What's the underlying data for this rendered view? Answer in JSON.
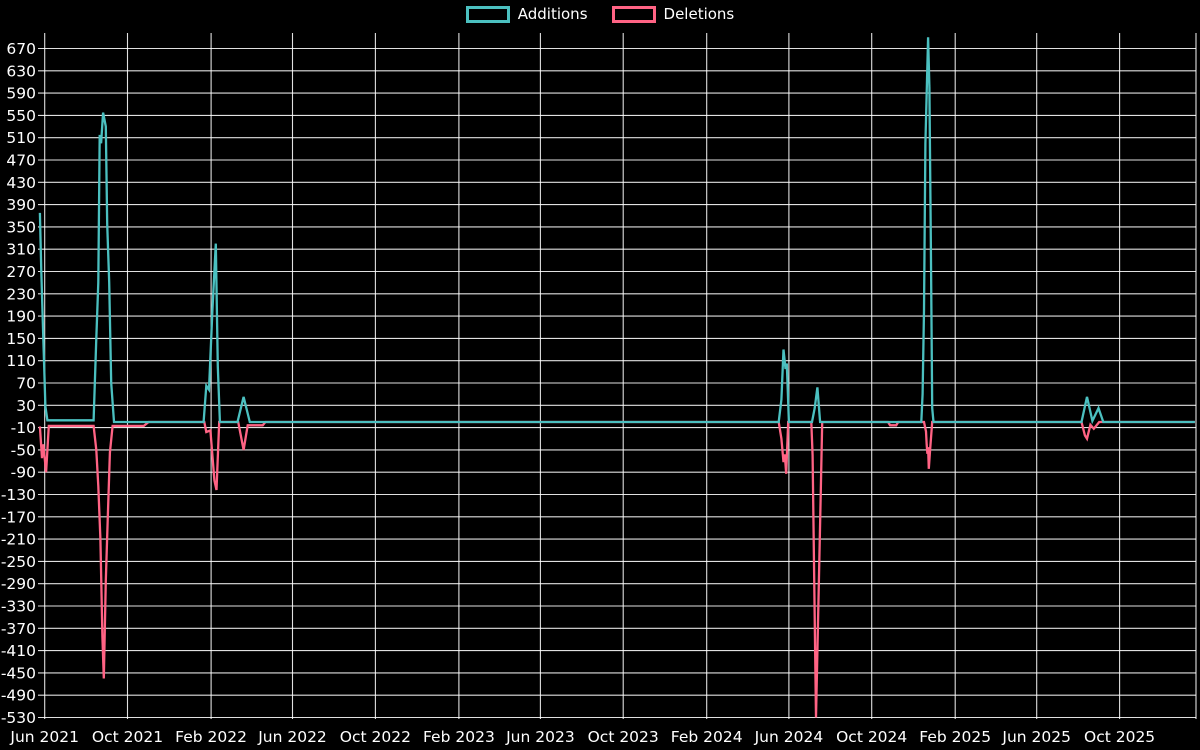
{
  "legend": {
    "items": [
      {
        "label": "Additions",
        "color": "#4bc0c0"
      },
      {
        "label": "Deletions",
        "color": "#ff6384"
      }
    ]
  },
  "chart_data": {
    "type": "line",
    "title": "",
    "xlabel": "",
    "ylabel": "",
    "legend_position": "top",
    "grid": true,
    "background": "#000000",
    "grid_color": "rgba(255,255,255,0.88)",
    "text_color": "#ffffff",
    "x_axis": {
      "range": [
        "2021-05-25",
        "2026-01-20"
      ],
      "ticks": [
        {
          "label": "Jun 2021",
          "date": "2021-06-01"
        },
        {
          "label": "Oct 2021",
          "date": "2021-10-01"
        },
        {
          "label": "Feb 2022",
          "date": "2022-02-01"
        },
        {
          "label": "Jun 2022",
          "date": "2022-06-01"
        },
        {
          "label": "Oct 2022",
          "date": "2022-10-01"
        },
        {
          "label": "Feb 2023",
          "date": "2023-02-01"
        },
        {
          "label": "Jun 2023",
          "date": "2023-06-01"
        },
        {
          "label": "Oct 2023",
          "date": "2023-10-01"
        },
        {
          "label": "Feb 2024",
          "date": "2024-02-01"
        },
        {
          "label": "Jun 2024",
          "date": "2024-06-01"
        },
        {
          "label": "Oct 2024",
          "date": "2024-10-01"
        },
        {
          "label": "Feb 2025",
          "date": "2025-02-01"
        },
        {
          "label": "Jun 2025",
          "date": "2025-06-01"
        },
        {
          "label": "Oct 2025",
          "date": "2025-10-01"
        }
      ]
    },
    "y_axis": {
      "range": [
        -533,
        698
      ],
      "ticks": [
        670,
        630,
        590,
        550,
        510,
        470,
        430,
        390,
        350,
        310,
        270,
        230,
        190,
        150,
        110,
        70,
        30,
        -10,
        -50,
        -90,
        -130,
        -170,
        -210,
        -250,
        -290,
        -330,
        -370,
        -410,
        -450,
        -490,
        -530
      ]
    },
    "series": [
      {
        "name": "Additions",
        "color": "#4bc0c0",
        "points": [
          [
            "2021-05-25",
            375
          ],
          [
            "2021-05-27",
            270
          ],
          [
            "2021-05-30",
            150
          ],
          [
            "2021-06-02",
            28
          ],
          [
            "2021-06-05",
            3
          ],
          [
            "2021-08-12",
            3
          ],
          [
            "2021-08-16",
            150
          ],
          [
            "2021-08-19",
            250
          ],
          [
            "2021-08-21",
            515
          ],
          [
            "2021-08-23",
            500
          ],
          [
            "2021-08-26",
            555
          ],
          [
            "2021-08-30",
            530
          ],
          [
            "2021-09-01",
            355
          ],
          [
            "2021-09-04",
            250
          ],
          [
            "2021-09-07",
            70
          ],
          [
            "2021-09-11",
            0
          ],
          [
            "2022-01-21",
            0
          ],
          [
            "2022-01-25",
            65
          ],
          [
            "2022-01-29",
            58
          ],
          [
            "2022-02-03",
            200
          ],
          [
            "2022-02-08",
            320
          ],
          [
            "2022-02-11",
            100
          ],
          [
            "2022-02-14",
            0
          ],
          [
            "2022-03-12",
            0
          ],
          [
            "2022-03-21",
            45
          ],
          [
            "2022-03-30",
            0
          ],
          [
            "2024-05-17",
            0
          ],
          [
            "2024-05-21",
            40
          ],
          [
            "2024-05-24",
            130
          ],
          [
            "2024-05-27",
            95
          ],
          [
            "2024-05-29",
            105
          ],
          [
            "2024-06-01",
            0
          ],
          [
            "2024-07-05",
            0
          ],
          [
            "2024-07-09",
            25
          ],
          [
            "2024-07-13",
            62
          ],
          [
            "2024-07-17",
            0
          ],
          [
            "2024-12-13",
            0
          ],
          [
            "2024-12-15",
            50
          ],
          [
            "2024-12-17",
            200
          ],
          [
            "2024-12-19",
            500
          ],
          [
            "2024-12-23",
            690
          ],
          [
            "2024-12-25",
            600
          ],
          [
            "2024-12-27",
            330
          ],
          [
            "2024-12-28",
            180
          ],
          [
            "2024-12-29",
            25
          ],
          [
            "2024-12-31",
            0
          ],
          [
            "2025-08-06",
            0
          ],
          [
            "2025-08-14",
            45
          ],
          [
            "2025-08-22",
            2
          ],
          [
            "2025-08-31",
            25
          ],
          [
            "2025-09-07",
            0
          ],
          [
            "2026-01-20",
            0
          ]
        ]
      },
      {
        "name": "Deletions",
        "color": "#ff6384",
        "points": [
          [
            "2021-05-25",
            -8
          ],
          [
            "2021-05-28",
            -65
          ],
          [
            "2021-05-30",
            -40
          ],
          [
            "2021-06-03",
            -90
          ],
          [
            "2021-06-07",
            -7
          ],
          [
            "2021-08-12",
            -7
          ],
          [
            "2021-08-16",
            -50
          ],
          [
            "2021-08-19",
            -115
          ],
          [
            "2021-08-22",
            -210
          ],
          [
            "2021-08-25",
            -385
          ],
          [
            "2021-08-27",
            -460
          ],
          [
            "2021-08-30",
            -285
          ],
          [
            "2021-09-02",
            -170
          ],
          [
            "2021-09-05",
            -55
          ],
          [
            "2021-09-09",
            -7
          ],
          [
            "2021-10-25",
            -7
          ],
          [
            "2021-11-01",
            0
          ],
          [
            "2022-01-22",
            0
          ],
          [
            "2022-01-25",
            -18
          ],
          [
            "2022-01-31",
            -15
          ],
          [
            "2022-02-06",
            -105
          ],
          [
            "2022-02-09",
            -122
          ],
          [
            "2022-02-13",
            0
          ],
          [
            "2022-03-13",
            0
          ],
          [
            "2022-03-21",
            -50
          ],
          [
            "2022-03-27",
            -6
          ],
          [
            "2022-04-18",
            -6
          ],
          [
            "2022-04-22",
            0
          ],
          [
            "2024-05-17",
            0
          ],
          [
            "2024-05-21",
            -30
          ],
          [
            "2024-05-24",
            -72
          ],
          [
            "2024-05-26",
            -58
          ],
          [
            "2024-05-28",
            -93
          ],
          [
            "2024-05-31",
            0
          ],
          [
            "2024-07-04",
            0
          ],
          [
            "2024-07-06",
            -60
          ],
          [
            "2024-07-11",
            -530
          ],
          [
            "2024-07-18",
            -123
          ],
          [
            "2024-07-20",
            0
          ],
          [
            "2024-10-25",
            0
          ],
          [
            "2024-10-28",
            -6
          ],
          [
            "2024-11-06",
            -6
          ],
          [
            "2024-11-09",
            0
          ],
          [
            "2024-12-17",
            0
          ],
          [
            "2024-12-20",
            -17
          ],
          [
            "2024-12-21",
            -41
          ],
          [
            "2024-12-22",
            -57
          ],
          [
            "2024-12-23",
            -45
          ],
          [
            "2024-12-24",
            -84
          ],
          [
            "2024-12-26",
            -50
          ],
          [
            "2024-12-29",
            0
          ],
          [
            "2025-08-06",
            0
          ],
          [
            "2025-08-11",
            -24
          ],
          [
            "2025-08-14",
            -30
          ],
          [
            "2025-08-19",
            -5
          ],
          [
            "2025-08-24",
            -12
          ],
          [
            "2025-09-01",
            0
          ],
          [
            "2026-01-20",
            0
          ]
        ]
      }
    ]
  }
}
